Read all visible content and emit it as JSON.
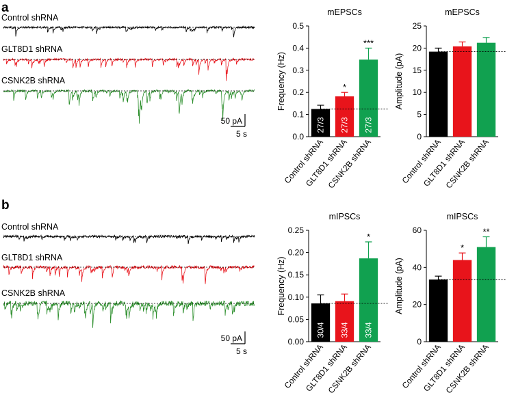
{
  "panels": [
    {
      "letter": "a"
    },
    {
      "letter": "b"
    }
  ],
  "traces": [
    {
      "label": "Control shRNA",
      "color": "#000000",
      "spikes": 24,
      "amp": 0.55,
      "noise": 1.4,
      "seed": 11
    },
    {
      "label": "GLT8D1 shRNA",
      "color": "#e8141b",
      "spikes": 40,
      "amp": 0.7,
      "noise": 1.5,
      "seed": 23
    },
    {
      "label": "CSNK2B shRNA",
      "color": "#2d8f2d",
      "spikes": 72,
      "amp": 0.8,
      "noise": 1.6,
      "seed": 37
    },
    {
      "label": "Control shRNA",
      "color": "#000000",
      "spikes": 26,
      "amp": 0.45,
      "noise": 1.8,
      "seed": 41
    },
    {
      "label": "GLT8D1 shRNA",
      "color": "#e8141b",
      "spikes": 30,
      "amp": 1.1,
      "noise": 2.2,
      "seed": 53
    },
    {
      "label": "CSNK2B shRNA",
      "color": "#2d8f2d",
      "spikes": 60,
      "amp": 1.0,
      "noise": 3.6,
      "seed": 67
    }
  ],
  "scale_bars": [
    {
      "current": "50 pA",
      "time": "5 s"
    },
    {
      "current": "50 pA",
      "time": "5 s"
    }
  ],
  "chart_data": [
    {
      "type": "bar",
      "title": "mEPSCs",
      "ylabel": "Frequency (Hz)",
      "categories": [
        "Control shRNA",
        "GLT8D1 shRNA",
        "CSNK2B shRNA"
      ],
      "values": [
        0.125,
        0.182,
        0.348
      ],
      "errors": [
        0.017,
        0.018,
        0.052
      ],
      "colors": [
        "#000000",
        "#e8141b",
        "#11a150"
      ],
      "bar_labels": [
        "27/3",
        "27/3",
        "27/3"
      ],
      "significance": [
        "",
        "*",
        "***"
      ],
      "baseline": 0.125,
      "ylim": [
        0,
        0.5
      ],
      "yticks": [
        "0.0",
        "0.1",
        "0.2",
        "0.3",
        "0.4",
        "0.5"
      ]
    },
    {
      "type": "bar",
      "title": "mEPSCs",
      "ylabel": "Amplitude (pA)",
      "categories": [
        "Control shRNA",
        "GLT8D1 shRNA",
        "CSNK2B shRNA"
      ],
      "values": [
        19.2,
        20.4,
        21.2
      ],
      "errors": [
        0.8,
        1.0,
        1.2
      ],
      "colors": [
        "#000000",
        "#e8141b",
        "#11a150"
      ],
      "bar_labels": [
        "",
        "",
        ""
      ],
      "significance": [
        "",
        "",
        ""
      ],
      "baseline": 19.2,
      "ylim": [
        0,
        25
      ],
      "yticks": [
        "0",
        "5",
        "10",
        "15",
        "20",
        "25"
      ]
    },
    {
      "type": "bar",
      "title": "mIPSCs",
      "ylabel": "Frequency (Hz)",
      "categories": [
        "Control shRNA",
        "GLT8D1 shRNA",
        "CSNK2B shRNA"
      ],
      "values": [
        0.086,
        0.091,
        0.187
      ],
      "errors": [
        0.019,
        0.016,
        0.037
      ],
      "colors": [
        "#000000",
        "#e8141b",
        "#11a150"
      ],
      "bar_labels": [
        "30/4",
        "33/4",
        "33/4"
      ],
      "significance": [
        "",
        "",
        "*"
      ],
      "baseline": 0.086,
      "ylim": [
        0,
        0.25
      ],
      "yticks": [
        "0.00",
        "0.05",
        "0.10",
        "0.15",
        "0.20",
        "0.25"
      ]
    },
    {
      "type": "bar",
      "title": "mIPSCs",
      "ylabel": "Amplitude (pA)",
      "categories": [
        "Control shRNA",
        "GLT8D1 shRNA",
        "CSNK2B shRNA"
      ],
      "values": [
        33.5,
        44.0,
        51.0
      ],
      "errors": [
        1.8,
        3.8,
        5.5
      ],
      "colors": [
        "#000000",
        "#e8141b",
        "#11a150"
      ],
      "bar_labels": [
        "",
        "",
        ""
      ],
      "significance": [
        "",
        "*",
        "**"
      ],
      "baseline": 33.5,
      "ylim": [
        0,
        60
      ],
      "yticks": [
        "0",
        "20",
        "40",
        "60"
      ]
    }
  ]
}
